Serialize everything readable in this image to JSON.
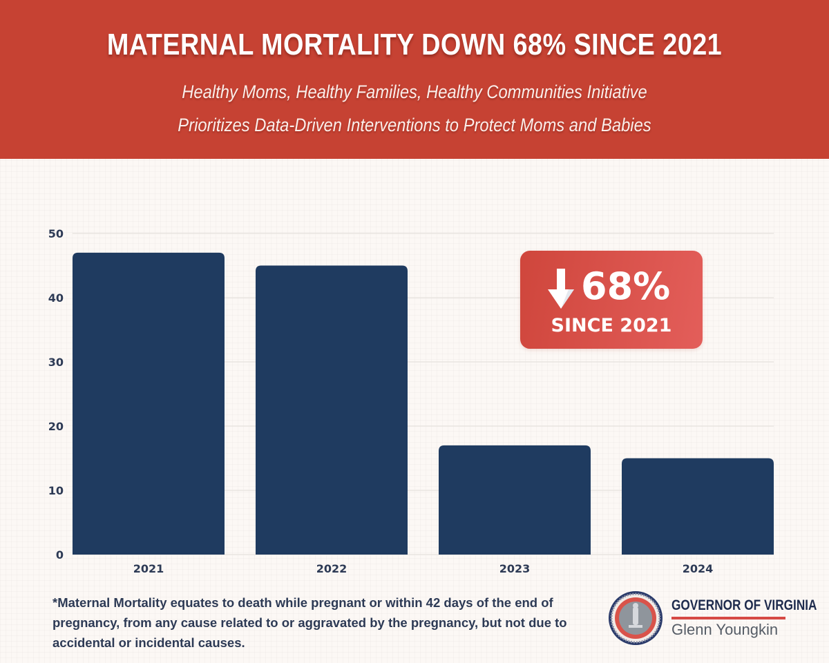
{
  "header": {
    "title": "MATERNAL MORTALITY DOWN 68% SINCE 2021",
    "subtitle_line1": "Healthy Moms, Healthy Families, Healthy Communities Initiative",
    "subtitle_line2": "Prioritizes Data-Driven Interventions to Protect Moms and Babies"
  },
  "badge": {
    "icon": "arrow-down-icon",
    "value": "68%",
    "label": "SINCE 2021"
  },
  "footnote": "*Maternal Mortality equates to death while pregnant or within 42 days of the end of pregnancy, from any cause related to or aggravated by the pregnancy, but not due to accidental or incidental causes.",
  "logo": {
    "title": "GOVERNOR OF VIRGINIA",
    "name": "Glenn Youngkin",
    "seal_icon": "virginia-state-seal-icon"
  },
  "colors": {
    "header_bg": "#c64233",
    "bar": "#1f3b60",
    "badge": "#d9504a",
    "text_dark": "#2d3a55"
  },
  "chart_data": {
    "type": "bar",
    "title": "MATERNAL MORTALITY DOWN 68% SINCE 2021",
    "categories": [
      "2021",
      "2022",
      "2023",
      "2024"
    ],
    "values": [
      47,
      45,
      17,
      15
    ],
    "xlabel": "",
    "ylabel": "",
    "ylim": [
      0,
      50
    ],
    "yticks": [
      0,
      10,
      20,
      30,
      40,
      50
    ],
    "grid": true,
    "legend": "none",
    "annotations": [
      "↓68% SINCE 2021"
    ]
  }
}
